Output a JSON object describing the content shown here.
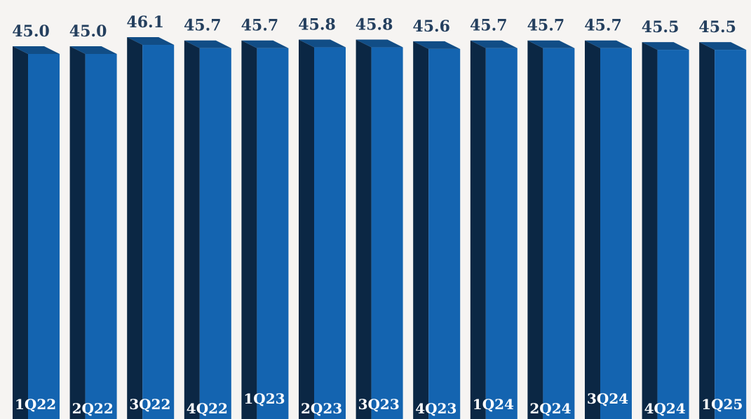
{
  "colors": {
    "background": "#f6f4f2",
    "bar_front": "#1464b0",
    "bar_side": "#0b2744",
    "bar_top": "#114d86",
    "value_label": "#243f5e",
    "category_label": "#ffffff"
  },
  "chart_data": {
    "type": "bar",
    "style": "3d-column",
    "categories": [
      "1Q22",
      "2Q22",
      "3Q22",
      "4Q22",
      "1Q23",
      "2Q23",
      "3Q23",
      "4Q23",
      "1Q24",
      "2Q24",
      "3Q24",
      "4Q24",
      "1Q25"
    ],
    "values": [
      45.0,
      45.0,
      46.1,
      45.7,
      45.7,
      45.8,
      45.8,
      45.6,
      45.7,
      45.7,
      45.7,
      45.5,
      45.5
    ],
    "value_labels": [
      "45.0",
      "45.0",
      "46.1",
      "45.7",
      "45.7",
      "45.8",
      "45.8",
      "45.6",
      "45.7",
      "45.7",
      "45.7",
      "45.5",
      "45.5"
    ],
    "title": "",
    "xlabel": "",
    "ylabel": "",
    "grid": false,
    "legend": "none"
  }
}
